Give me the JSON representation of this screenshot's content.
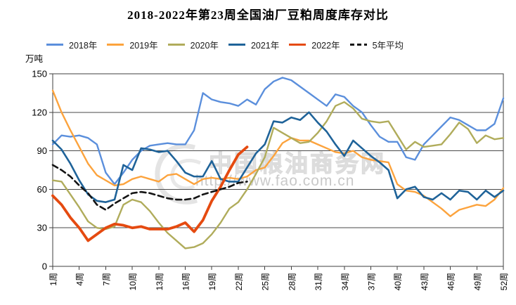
{
  "title": "2018-2022年第23周全国油厂豆粕周度库存对比",
  "y_axis": {
    "unit": "万吨",
    "tick_labels": [
      "0",
      "30",
      "60",
      "90",
      "120",
      "150"
    ]
  },
  "x_axis": {
    "tick_labels": [
      "1周",
      "4周",
      "7周",
      "10周",
      "13周",
      "16周",
      "19周",
      "22周",
      "25周",
      "28周",
      "31周",
      "34周",
      "37周",
      "40周",
      "43周",
      "46周",
      "49周",
      "52周"
    ]
  },
  "watermark": {
    "site_name": "中国粮油商务网",
    "url": "http://www.fao.com.cn"
  },
  "chart_data": {
    "type": "line",
    "x_label_unit": "周",
    "x_range": [
      1,
      52
    ],
    "x_tick_step": 3,
    "ylim": [
      0,
      150
    ],
    "y_grid_step": 30,
    "grid": true,
    "legend_position": "top",
    "series": [
      {
        "key": "2018",
        "name": "2018年",
        "color": "#5b8fdc",
        "dash": "solid",
        "line_width": 2.4,
        "start_week": 1,
        "values": [
          95,
          102,
          101,
          102,
          100,
          95,
          73,
          64,
          73,
          83,
          90,
          94,
          95,
          96,
          95,
          95,
          106,
          135,
          130,
          128,
          127,
          125,
          130,
          126,
          138,
          144,
          147,
          145,
          140,
          135,
          130,
          125,
          134,
          132,
          125,
          120,
          110,
          101,
          97,
          97,
          85,
          83,
          95,
          102,
          109,
          116,
          114,
          110,
          106,
          106,
          111,
          131
        ]
      },
      {
        "key": "2019",
        "name": "2019年",
        "color": "#fca33d",
        "dash": "solid",
        "line_width": 2.4,
        "start_week": 1,
        "values": [
          137,
          120,
          106,
          93,
          80,
          71,
          67,
          63,
          64,
          68,
          70,
          68,
          66,
          71,
          72,
          68,
          64,
          68,
          69,
          68,
          69,
          68,
          70,
          75,
          77,
          86,
          96,
          100,
          98,
          98,
          95,
          92,
          89,
          88,
          90,
          85,
          83,
          82,
          81,
          64,
          59,
          58,
          55,
          50,
          45,
          39,
          44,
          46,
          48,
          47,
          52,
          61
        ]
      },
      {
        "key": "2020",
        "name": "2020年",
        "color": "#b0ac5b",
        "dash": "solid",
        "line_width": 2.4,
        "start_week": 1,
        "values": [
          67,
          66,
          56,
          46,
          35,
          30,
          29,
          31,
          48,
          52,
          50,
          43,
          34,
          26,
          20,
          14,
          15,
          18,
          25,
          34,
          45,
          50,
          60,
          72,
          85,
          108,
          104,
          100,
          96,
          97,
          104,
          113,
          125,
          128,
          123,
          115,
          113,
          112,
          113,
          102,
          91,
          97,
          93,
          94,
          95,
          103,
          112,
          107,
          96,
          102,
          99,
          100
        ]
      },
      {
        "key": "2021",
        "name": "2021年",
        "color": "#1f6399",
        "dash": "solid",
        "line_width": 2.6,
        "start_week": 1,
        "values": [
          98,
          91,
          80,
          67,
          56,
          51,
          50,
          52,
          79,
          75,
          92,
          91,
          89,
          90,
          82,
          73,
          70,
          70,
          82,
          68,
          66,
          66,
          77,
          88,
          95,
          113,
          112,
          116,
          114,
          120,
          112,
          105,
          95,
          86,
          98,
          92,
          86,
          81,
          75,
          53,
          60,
          62,
          54,
          52,
          57,
          52,
          59,
          58,
          52,
          59,
          54,
          59
        ]
      },
      {
        "key": "2022",
        "name": "2022年",
        "color": "#e54a10",
        "dash": "solid",
        "line_width": 3.8,
        "start_week": 1,
        "values": [
          55,
          48,
          38,
          30,
          20,
          25,
          30,
          33,
          32,
          30,
          31,
          29,
          29,
          29,
          31,
          34,
          27,
          36,
          51,
          62,
          75,
          87,
          93
        ]
      },
      {
        "key": "5yr-avg",
        "name": "5年平均",
        "color": "#141414",
        "dash": "dashed",
        "line_width": 2.6,
        "start_week": 1,
        "values": [
          79,
          75,
          70,
          63,
          57,
          48,
          44,
          49,
          53,
          57,
          58,
          57,
          55,
          53,
          52,
          52,
          53,
          56,
          58,
          60,
          62,
          65,
          66
        ]
      }
    ]
  }
}
